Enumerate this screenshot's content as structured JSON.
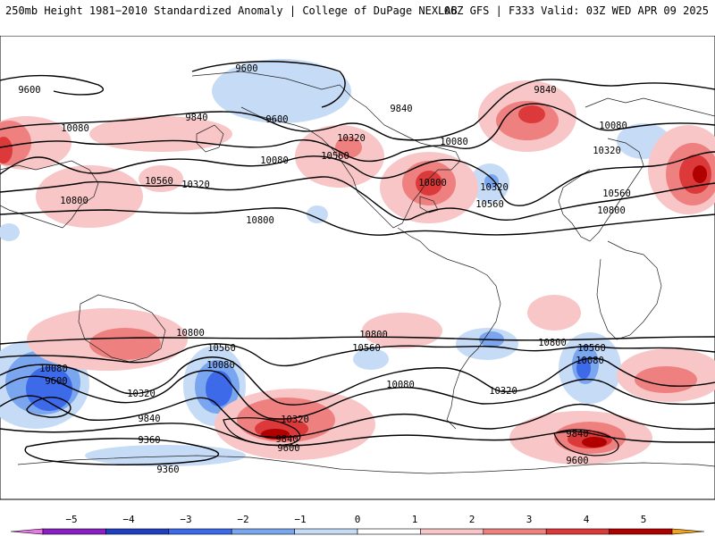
{
  "header": {
    "title": "250mb Height 1981−2010 Standardized Anomaly | College of DuPage NEXLAB",
    "run_info": "06Z GFS | F333 Valid: 03Z WED APR 09 2025"
  },
  "colorbar": {
    "labels": [
      "−5",
      "−4",
      "−3",
      "−2",
      "−1",
      "0",
      "1",
      "2",
      "3",
      "4",
      "5"
    ],
    "colors": [
      "#e877e8",
      "#8a1fc4",
      "#1f3fc0",
      "#3c6ae8",
      "#7aa6f0",
      "#c6dcf6",
      "#ffffff",
      "#f8c6c6",
      "#ef8080",
      "#dc3a3a",
      "#b00000",
      "#f7a21c"
    ]
  },
  "contour_labels": [
    "9600",
    "9600",
    "9840",
    "10080",
    "10320",
    "10560",
    "10800",
    "10080",
    "10560",
    "10320",
    "10800",
    "10080",
    "10320",
    "10800",
    "10560",
    "10800",
    "9840",
    "9600",
    "9840",
    "10080",
    "10320",
    "10560",
    "10800",
    "10080",
    "10560",
    "10320",
    "10800",
    "10560",
    "10800",
    "10800",
    "10560",
    "10080",
    "10320",
    "10080",
    "9600",
    "10320",
    "9840",
    "9360",
    "9360",
    "10080",
    "10320",
    "9840",
    "9600",
    "10800",
    "10560",
    "10080",
    "9600",
    "9840",
    "10320",
    "9840",
    "10560",
    "10080",
    "9600",
    "10080"
  ]
}
